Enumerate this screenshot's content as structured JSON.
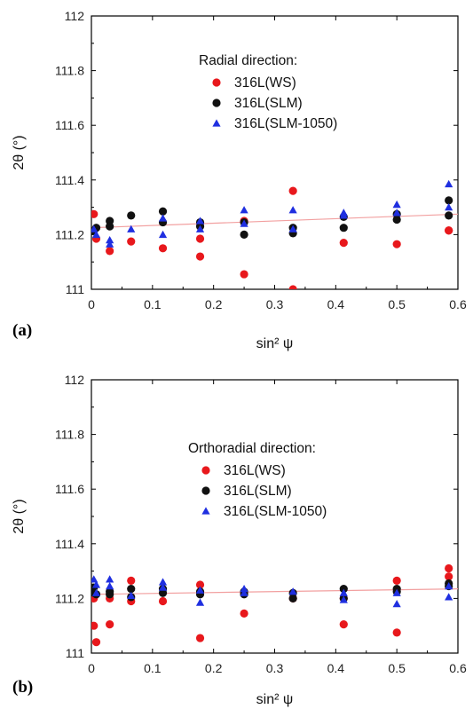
{
  "chart_data": [
    {
      "type": "scatter",
      "panel_label": "(a)",
      "xlabel": "sin² ψ",
      "ylabel": "2θ (°)",
      "xlim": [
        0,
        0.6
      ],
      "ylim": [
        111,
        112
      ],
      "xticks": [
        "0",
        "0.1",
        "0.2",
        "0.3",
        "0.4",
        "0.5",
        "0.6"
      ],
      "yticks": [
        "111",
        "111.2",
        "111.4",
        "111.6",
        "111.8",
        "112"
      ],
      "legend_title": "Radial direction:",
      "legend_position": "upper-center",
      "fit_line": {
        "x": [
          0,
          0.6
        ],
        "y": [
          111.225,
          111.275
        ],
        "color": "#f2a0a0"
      },
      "series": [
        {
          "name": "316L(WS)",
          "marker": "circle",
          "color": "#e8181c",
          "x": [
            0.004,
            0.008,
            0.03,
            0.065,
            0.117,
            0.178,
            0.178,
            0.25,
            0.25,
            0.33,
            0.33,
            0.413,
            0.5,
            0.585,
            0.585
          ],
          "y": [
            111.275,
            111.185,
            111.14,
            111.175,
            111.15,
            111.185,
            111.12,
            111.25,
            111.055,
            111.36,
            111.0,
            111.17,
            111.165,
            111.215,
            111.215
          ]
        },
        {
          "name": "316L(SLM)",
          "marker": "circle",
          "color": "#111111",
          "x": [
            0.004,
            0.008,
            0.03,
            0.03,
            0.065,
            0.117,
            0.117,
            0.178,
            0.178,
            0.25,
            0.25,
            0.33,
            0.33,
            0.413,
            0.413,
            0.5,
            0.5,
            0.585,
            0.585
          ],
          "y": [
            111.215,
            111.225,
            111.25,
            111.23,
            111.27,
            111.285,
            111.245,
            111.245,
            111.23,
            111.245,
            111.2,
            111.225,
            111.205,
            111.265,
            111.225,
            111.275,
            111.255,
            111.325,
            111.27
          ]
        },
        {
          "name": "316L(SLM-1050)",
          "marker": "triangle",
          "color": "#1f2fe0",
          "x": [
            0.004,
            0.008,
            0.03,
            0.03,
            0.065,
            0.117,
            0.117,
            0.178,
            0.178,
            0.25,
            0.25,
            0.33,
            0.33,
            0.413,
            0.413,
            0.5,
            0.5,
            0.585,
            0.585
          ],
          "y": [
            111.22,
            111.2,
            111.18,
            111.165,
            111.22,
            111.26,
            111.2,
            111.25,
            111.22,
            111.29,
            111.24,
            111.29,
            111.22,
            111.28,
            111.27,
            111.31,
            111.28,
            111.385,
            111.3
          ]
        }
      ]
    },
    {
      "type": "scatter",
      "panel_label": "(b)",
      "xlabel": "sin² ψ",
      "ylabel": "2θ (°)",
      "xlim": [
        0,
        0.6
      ],
      "ylim": [
        111,
        112
      ],
      "xticks": [
        "0",
        "0.1",
        "0.2",
        "0.3",
        "0.4",
        "0.5",
        "0.6"
      ],
      "yticks": [
        "111",
        "111.2",
        "111.4",
        "111.6",
        "111.8",
        "112"
      ],
      "legend_title": "Orthoradial direction:",
      "legend_position": "upper-center",
      "fit_line": {
        "x": [
          0,
          0.6
        ],
        "y": [
          111.215,
          111.235
        ],
        "color": "#f2a0a0"
      },
      "series": [
        {
          "name": "316L(WS)",
          "marker": "circle",
          "color": "#e8181c",
          "x": [
            0.004,
            0.004,
            0.008,
            0.03,
            0.03,
            0.065,
            0.065,
            0.117,
            0.178,
            0.178,
            0.25,
            0.25,
            0.33,
            0.413,
            0.413,
            0.5,
            0.5,
            0.585,
            0.585
          ],
          "y": [
            111.2,
            111.1,
            111.04,
            111.2,
            111.105,
            111.265,
            111.19,
            111.19,
            111.25,
            111.055,
            111.22,
            111.145,
            111.2,
            111.2,
            111.105,
            111.265,
            111.075,
            111.31,
            111.28
          ]
        },
        {
          "name": "316L(SLM)",
          "marker": "circle",
          "color": "#111111",
          "x": [
            0.004,
            0.004,
            0.008,
            0.03,
            0.03,
            0.065,
            0.065,
            0.117,
            0.117,
            0.178,
            0.178,
            0.25,
            0.25,
            0.33,
            0.33,
            0.413,
            0.413,
            0.5,
            0.5,
            0.585,
            0.585
          ],
          "y": [
            111.24,
            111.22,
            111.215,
            111.225,
            111.215,
            111.235,
            111.205,
            111.235,
            111.22,
            111.225,
            111.215,
            111.225,
            111.215,
            111.22,
            111.2,
            111.235,
            111.2,
            111.235,
            111.225,
            111.255,
            111.245
          ]
        },
        {
          "name": "316L(SLM-1050)",
          "marker": "triangle",
          "color": "#1f2fe0",
          "x": [
            0.004,
            0.008,
            0.008,
            0.03,
            0.03,
            0.065,
            0.117,
            0.117,
            0.178,
            0.178,
            0.25,
            0.25,
            0.33,
            0.413,
            0.413,
            0.5,
            0.5,
            0.585,
            0.585
          ],
          "y": [
            111.27,
            111.25,
            111.22,
            111.27,
            111.245,
            111.21,
            111.26,
            111.24,
            111.23,
            111.185,
            111.235,
            111.22,
            111.225,
            111.22,
            111.195,
            111.22,
            111.18,
            111.245,
            111.205
          ]
        }
      ]
    }
  ]
}
